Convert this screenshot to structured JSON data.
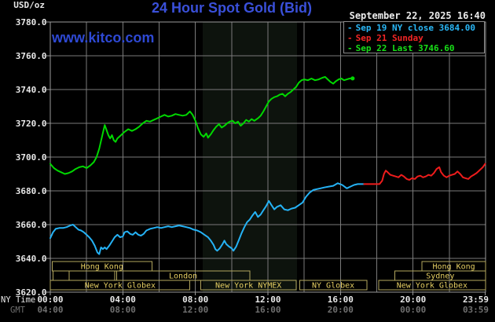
{
  "header": {
    "unit_label": "USD/oz",
    "title": "24 Hour Spot Gold (Bid)",
    "datetime": "September 22, 2025 16:40",
    "watermark": "www.kitco.com"
  },
  "legend": {
    "items": [
      {
        "dash": "-",
        "label": "Sep 19 NY close 3684.00",
        "color": "#29b7f7"
      },
      {
        "dash": "-",
        "label": "Sep 21 Sunday",
        "color": "#f32525"
      },
      {
        "dash": "-",
        "label": "Sep 22 Last 3746.60",
        "color": "#18e018"
      }
    ]
  },
  "axes": {
    "y_ticks": [
      "3780.0",
      "3760.0",
      "3740.0",
      "3720.0",
      "3700.0",
      "3680.0",
      "3660.0",
      "3640.0",
      "3620.0"
    ],
    "y_tick_values": [
      3780,
      3760,
      3740,
      3720,
      3700,
      3680,
      3660,
      3640,
      3620
    ],
    "tick_hours": [
      0,
      4,
      8,
      12,
      16,
      20,
      23.983
    ],
    "x_rows": [
      {
        "label": "NY Time",
        "color": "#e8e8e8",
        "ticks": [
          "00:00",
          "04:00",
          "08:00",
          "12:00",
          "16:00",
          "20:00",
          "23:59"
        ]
      },
      {
        "label": "GMT",
        "color": "#6f6f6f",
        "ticks": [
          "04:00",
          "08:00",
          "12:00",
          "16:00",
          "20:00",
          "00:00",
          "03:59"
        ]
      }
    ]
  },
  "sessions": {
    "rows": [
      {
        "boxes": [
          {
            "label": "Hong Kong",
            "start": 0.1,
            "end": 5.6
          },
          {
            "label": "Hong Kong",
            "start": 20.5,
            "end": 24
          }
        ]
      },
      {
        "boxes": [
          {
            "label": "",
            "start": 0.15,
            "end": 1.05
          },
          {
            "label": "",
            "start": 1.05,
            "end": 3.55
          },
          {
            "label": "London",
            "start": 3.65,
            "end": 11
          },
          {
            "label": "Sydney",
            "start": 19,
            "end": 24
          }
        ]
      },
      {
        "boxes": [
          {
            "label": "New York Globex",
            "start": 0,
            "end": 7.7
          },
          {
            "label": "New York NYMEX",
            "start": 8.3,
            "end": 13.55
          },
          {
            "label": "NY Globex",
            "start": 13.75,
            "end": 17.45
          },
          {
            "label": "New York Globex",
            "start": 18.1,
            "end": 24
          }
        ]
      }
    ]
  },
  "colors": {
    "background": "#000000",
    "grid": "#7a7a7a",
    "border": "#9a9a9a",
    "band": "#0d130d",
    "session_border": "#b3a75e",
    "session_text": "#e6cf63",
    "axis_text": "#e8e8e8",
    "gmt_text": "#6f6f6f"
  },
  "chart_data": {
    "type": "line",
    "title": "24 Hour Spot Gold (Bid)",
    "x_unit": "NY time, hours 0-24",
    "xlim": [
      0,
      24
    ],
    "ylim": [
      3620,
      3780
    ],
    "y_tick_step": 20,
    "grid_hours_step": 2,
    "shaded_band_hours": [
      8.4,
      13.6
    ],
    "legend_position": "top-right",
    "series": [
      {
        "name": "Sep 19 NY close",
        "close": 3684.0,
        "color": "#25b2f5",
        "points": [
          [
            0,
            3652
          ],
          [
            0.15,
            3655.5
          ],
          [
            0.3,
            3657.5
          ],
          [
            0.5,
            3658
          ],
          [
            0.7,
            3658
          ],
          [
            0.9,
            3658.5
          ],
          [
            1.1,
            3659.5
          ],
          [
            1.25,
            3660
          ],
          [
            1.4,
            3658.5
          ],
          [
            1.55,
            3657
          ],
          [
            1.7,
            3656.5
          ],
          [
            1.85,
            3655.5
          ],
          [
            2,
            3654
          ],
          [
            2.15,
            3652.5
          ],
          [
            2.3,
            3650.5
          ],
          [
            2.45,
            3647.5
          ],
          [
            2.6,
            3643.5
          ],
          [
            2.7,
            3642.5
          ],
          [
            2.8,
            3646.5
          ],
          [
            2.9,
            3645.5
          ],
          [
            3,
            3646.5
          ],
          [
            3.1,
            3645.5
          ],
          [
            3.25,
            3647.5
          ],
          [
            3.4,
            3650
          ],
          [
            3.55,
            3652.5
          ],
          [
            3.7,
            3654
          ],
          [
            3.85,
            3652.5
          ],
          [
            4,
            3653
          ],
          [
            4.1,
            3655.5
          ],
          [
            4.25,
            3656
          ],
          [
            4.4,
            3654.5
          ],
          [
            4.55,
            3654
          ],
          [
            4.7,
            3655.5
          ],
          [
            4.85,
            3654
          ],
          [
            5,
            3653.5
          ],
          [
            5.15,
            3654.5
          ],
          [
            5.3,
            3656.5
          ],
          [
            5.5,
            3657.5
          ],
          [
            5.7,
            3658
          ],
          [
            5.9,
            3658.5
          ],
          [
            6.1,
            3658
          ],
          [
            6.3,
            3658.5
          ],
          [
            6.5,
            3659
          ],
          [
            6.7,
            3658.5
          ],
          [
            6.9,
            3659
          ],
          [
            7.1,
            3659.5
          ],
          [
            7.3,
            3659
          ],
          [
            7.5,
            3658.5
          ],
          [
            7.7,
            3658
          ],
          [
            7.9,
            3657
          ],
          [
            8.1,
            3656.5
          ],
          [
            8.3,
            3655.5
          ],
          [
            8.5,
            3654
          ],
          [
            8.7,
            3652.5
          ],
          [
            8.85,
            3650.5
          ],
          [
            9,
            3648
          ],
          [
            9.1,
            3645.5
          ],
          [
            9.2,
            3644.5
          ],
          [
            9.35,
            3646
          ],
          [
            9.5,
            3648.5
          ],
          [
            9.6,
            3650.5
          ],
          [
            9.7,
            3648.5
          ],
          [
            9.85,
            3647
          ],
          [
            10,
            3646
          ],
          [
            10.1,
            3644.5
          ],
          [
            10.25,
            3647
          ],
          [
            10.4,
            3651
          ],
          [
            10.55,
            3655
          ],
          [
            10.7,
            3658.5
          ],
          [
            10.85,
            3661.5
          ],
          [
            11,
            3663
          ],
          [
            11.15,
            3665.5
          ],
          [
            11.3,
            3667.5
          ],
          [
            11.45,
            3664.5
          ],
          [
            11.6,
            3666
          ],
          [
            11.75,
            3668.5
          ],
          [
            11.9,
            3671
          ],
          [
            12.05,
            3674
          ],
          [
            12.2,
            3671.5
          ],
          [
            12.35,
            3669
          ],
          [
            12.5,
            3670.5
          ],
          [
            12.7,
            3671.5
          ],
          [
            12.9,
            3669
          ],
          [
            13.1,
            3668.5
          ],
          [
            13.3,
            3669.5
          ],
          [
            13.5,
            3670
          ],
          [
            13.7,
            3671.5
          ],
          [
            13.9,
            3673
          ],
          [
            14.1,
            3676.5
          ],
          [
            14.3,
            3679
          ],
          [
            14.5,
            3680.5
          ],
          [
            14.7,
            3681
          ],
          [
            14.9,
            3681.5
          ],
          [
            15.1,
            3682
          ],
          [
            15.35,
            3682.5
          ],
          [
            15.6,
            3683
          ],
          [
            15.85,
            3684.5
          ],
          [
            16.1,
            3683.5
          ],
          [
            16.35,
            3681.5
          ],
          [
            16.55,
            3682.5
          ],
          [
            16.75,
            3683.5
          ],
          [
            16.95,
            3684
          ],
          [
            17.15,
            3684
          ],
          [
            17.3,
            3684
          ]
        ]
      },
      {
        "name": "Sep 21 Sunday",
        "color": "#ee1c1c",
        "points": [
          [
            17.3,
            3684
          ],
          [
            17.6,
            3684
          ],
          [
            17.9,
            3684
          ],
          [
            18.15,
            3684
          ],
          [
            18.3,
            3686
          ],
          [
            18.4,
            3690
          ],
          [
            18.5,
            3692
          ],
          [
            18.6,
            3691
          ],
          [
            18.75,
            3689.5
          ],
          [
            18.9,
            3689
          ],
          [
            19.05,
            3688.5
          ],
          [
            19.2,
            3688
          ],
          [
            19.35,
            3689.5
          ],
          [
            19.5,
            3688.5
          ],
          [
            19.65,
            3687
          ],
          [
            19.8,
            3686.5
          ],
          [
            19.95,
            3687.5
          ],
          [
            20.1,
            3687
          ],
          [
            20.25,
            3688.5
          ],
          [
            20.4,
            3689
          ],
          [
            20.55,
            3688
          ],
          [
            20.7,
            3688.5
          ],
          [
            20.85,
            3689.5
          ],
          [
            21,
            3689
          ],
          [
            21.15,
            3690.5
          ],
          [
            21.3,
            3693
          ],
          [
            21.45,
            3694
          ],
          [
            21.55,
            3691
          ],
          [
            21.7,
            3689
          ],
          [
            21.85,
            3688
          ],
          [
            22,
            3689
          ],
          [
            22.15,
            3689.5
          ],
          [
            22.3,
            3690
          ],
          [
            22.45,
            3691.5
          ],
          [
            22.6,
            3690
          ],
          [
            22.75,
            3688
          ],
          [
            22.9,
            3687.5
          ],
          [
            23.05,
            3687
          ],
          [
            23.2,
            3688.5
          ],
          [
            23.35,
            3689.5
          ],
          [
            23.5,
            3690.5
          ],
          [
            23.7,
            3692.5
          ],
          [
            23.85,
            3694
          ],
          [
            23.98,
            3696
          ]
        ]
      },
      {
        "name": "Sep 22 Last",
        "last": 3746.6,
        "color": "#00d800",
        "end_marker": true,
        "points": [
          [
            0,
            3696
          ],
          [
            0.2,
            3693.5
          ],
          [
            0.4,
            3692
          ],
          [
            0.6,
            3691
          ],
          [
            0.8,
            3690
          ],
          [
            1,
            3690.5
          ],
          [
            1.2,
            3691.5
          ],
          [
            1.4,
            3693
          ],
          [
            1.6,
            3694
          ],
          [
            1.8,
            3694.5
          ],
          [
            2,
            3693.5
          ],
          [
            2.2,
            3695
          ],
          [
            2.4,
            3697
          ],
          [
            2.55,
            3700
          ],
          [
            2.7,
            3705
          ],
          [
            2.85,
            3712
          ],
          [
            3,
            3719
          ],
          [
            3.1,
            3716
          ],
          [
            3.2,
            3713
          ],
          [
            3.3,
            3711
          ],
          [
            3.4,
            3713
          ],
          [
            3.5,
            3710
          ],
          [
            3.6,
            3709
          ],
          [
            3.7,
            3711
          ],
          [
            3.8,
            3712
          ],
          [
            3.95,
            3713.5
          ],
          [
            4.1,
            3715
          ],
          [
            4.3,
            3716.5
          ],
          [
            4.5,
            3715.5
          ],
          [
            4.7,
            3716.5
          ],
          [
            4.9,
            3718
          ],
          [
            5.1,
            3720
          ],
          [
            5.3,
            3721.5
          ],
          [
            5.5,
            3721
          ],
          [
            5.7,
            3722
          ],
          [
            5.9,
            3723
          ],
          [
            6.1,
            3724
          ],
          [
            6.3,
            3725
          ],
          [
            6.5,
            3724
          ],
          [
            6.7,
            3724.5
          ],
          [
            6.9,
            3725.5
          ],
          [
            7.1,
            3725
          ],
          [
            7.3,
            3724.5
          ],
          [
            7.5,
            3725
          ],
          [
            7.7,
            3727
          ],
          [
            7.85,
            3725
          ],
          [
            8,
            3721.5
          ],
          [
            8.15,
            3717
          ],
          [
            8.3,
            3713.5
          ],
          [
            8.45,
            3712
          ],
          [
            8.6,
            3714
          ],
          [
            8.7,
            3711.5
          ],
          [
            8.85,
            3713.5
          ],
          [
            9,
            3716
          ],
          [
            9.15,
            3718
          ],
          [
            9.3,
            3719.5
          ],
          [
            9.45,
            3717.5
          ],
          [
            9.6,
            3718.5
          ],
          [
            9.75,
            3720
          ],
          [
            9.9,
            3721
          ],
          [
            10.05,
            3721.5
          ],
          [
            10.2,
            3720
          ],
          [
            10.35,
            3721
          ],
          [
            10.5,
            3718.5
          ],
          [
            10.65,
            3720
          ],
          [
            10.8,
            3722
          ],
          [
            10.95,
            3721
          ],
          [
            11.1,
            3722.5
          ],
          [
            11.25,
            3721.5
          ],
          [
            11.45,
            3723
          ],
          [
            11.6,
            3724.5
          ],
          [
            11.75,
            3727
          ],
          [
            11.9,
            3730
          ],
          [
            12.05,
            3733
          ],
          [
            12.2,
            3734.5
          ],
          [
            12.35,
            3735.5
          ],
          [
            12.5,
            3736
          ],
          [
            12.65,
            3737
          ],
          [
            12.8,
            3737.5
          ],
          [
            12.95,
            3736
          ],
          [
            13.1,
            3737.5
          ],
          [
            13.25,
            3738.5
          ],
          [
            13.4,
            3740
          ],
          [
            13.55,
            3741.5
          ],
          [
            13.7,
            3744
          ],
          [
            13.85,
            3745.5
          ],
          [
            14,
            3746
          ],
          [
            14.2,
            3745.5
          ],
          [
            14.4,
            3746.5
          ],
          [
            14.6,
            3745.5
          ],
          [
            14.8,
            3746
          ],
          [
            15,
            3747
          ],
          [
            15.15,
            3747.5
          ],
          [
            15.3,
            3746
          ],
          [
            15.45,
            3744.5
          ],
          [
            15.6,
            3743.5
          ],
          [
            15.75,
            3745
          ],
          [
            15.9,
            3746
          ],
          [
            16.05,
            3746.5
          ],
          [
            16.2,
            3745.5
          ],
          [
            16.35,
            3746
          ],
          [
            16.5,
            3746.5
          ],
          [
            16.67,
            3746.6
          ]
        ]
      }
    ]
  }
}
